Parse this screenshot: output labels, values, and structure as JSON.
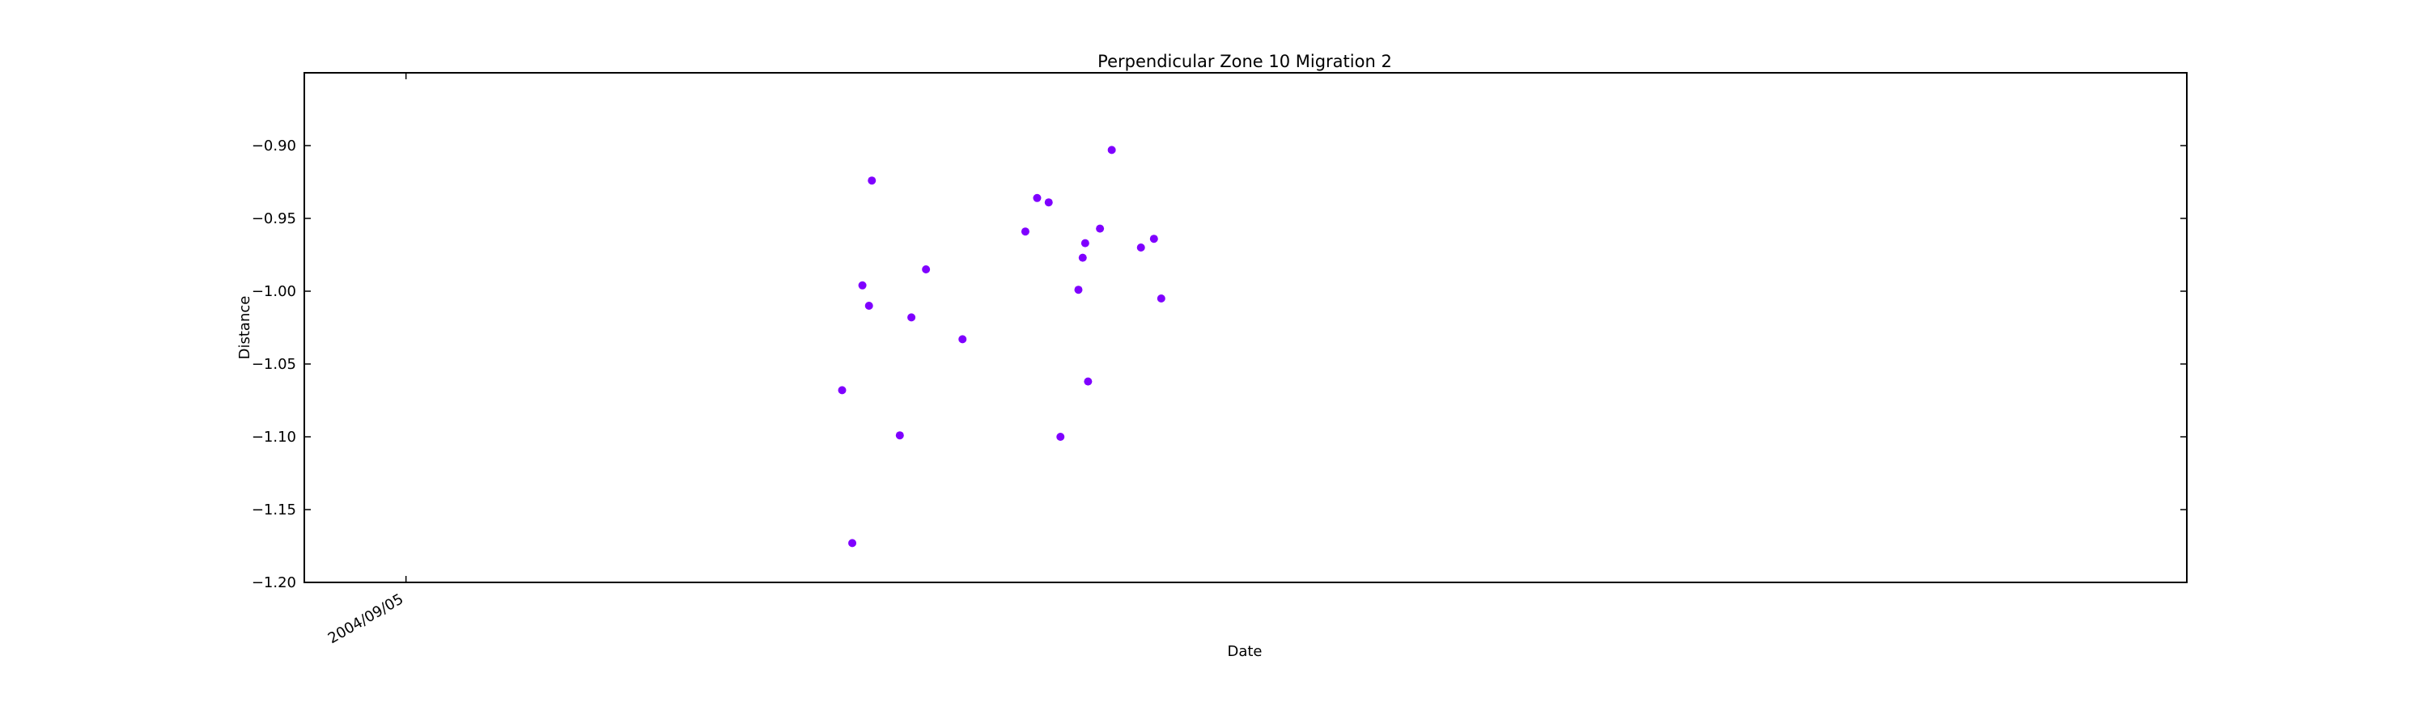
{
  "chart_data": {
    "type": "scatter",
    "title": "Perpendicular Zone 10 Migration 2",
    "xlabel": "Date",
    "ylabel": "Distance",
    "x_ticks": [
      {
        "label": "2004/09/05",
        "value": 0.0
      }
    ],
    "xlim": [
      -0.0571,
      1.0
    ],
    "ylim": [
      -1.2,
      -0.85
    ],
    "y_ticks": [
      -0.9,
      -0.95,
      -1.0,
      -1.05,
      -1.1,
      -1.15,
      -1.2
    ],
    "grid": false,
    "marker_color": "#7f00ff",
    "series": [
      {
        "points": [
          {
            "x": 0.2449,
            "y": -1.068
          },
          {
            "x": 0.2506,
            "y": -1.173
          },
          {
            "x": 0.2563,
            "y": -0.996
          },
          {
            "x": 0.26,
            "y": -1.01
          },
          {
            "x": 0.2616,
            "y": -0.924
          },
          {
            "x": 0.2773,
            "y": -1.099
          },
          {
            "x": 0.2838,
            "y": -1.018
          },
          {
            "x": 0.292,
            "y": -0.985
          },
          {
            "x": 0.3125,
            "y": -1.033
          },
          {
            "x": 0.3478,
            "y": -0.959
          },
          {
            "x": 0.3544,
            "y": -0.936
          },
          {
            "x": 0.3609,
            "y": -0.939
          },
          {
            "x": 0.3675,
            "y": -1.1
          },
          {
            "x": 0.3776,
            "y": -0.999
          },
          {
            "x": 0.38,
            "y": -0.977
          },
          {
            "x": 0.3814,
            "y": -0.967
          },
          {
            "x": 0.383,
            "y": -1.062
          },
          {
            "x": 0.3897,
            "y": -0.957
          },
          {
            "x": 0.3963,
            "y": -0.903
          },
          {
            "x": 0.4127,
            "y": -0.97
          },
          {
            "x": 0.42,
            "y": -0.964
          },
          {
            "x": 0.4241,
            "y": -1.005
          }
        ]
      }
    ]
  }
}
